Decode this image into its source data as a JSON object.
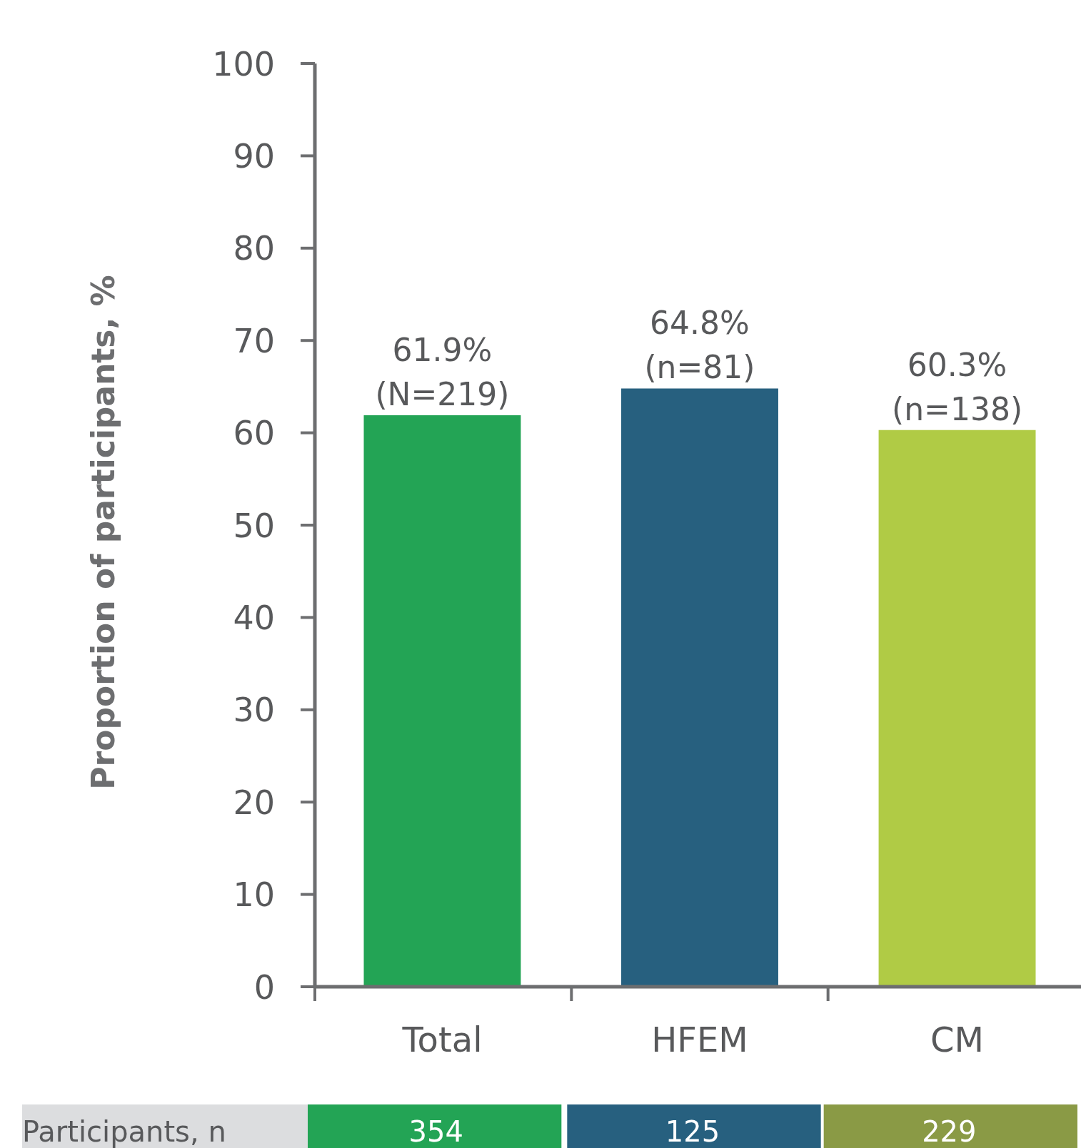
{
  "chart_data": {
    "type": "bar",
    "ylabel": "Proportion of participants, %",
    "categories": [
      "Total",
      "HFEM",
      "CM"
    ],
    "values": [
      61.9,
      64.8,
      60.3
    ],
    "colors": [
      "#23a455",
      "#27607f",
      "#b0cb45"
    ],
    "value_labels": [
      "61.9%\n(N=219)",
      "64.8%\n(n=81)",
      "60.3%\n(n=138)"
    ],
    "ylim": [
      0,
      100
    ],
    "yticks": [
      0,
      10,
      20,
      30,
      40,
      50,
      60,
      70,
      80,
      90,
      100
    ],
    "grid": false,
    "annotations": [
      "Participants, n",
      "354",
      "125",
      "229"
    ]
  }
}
